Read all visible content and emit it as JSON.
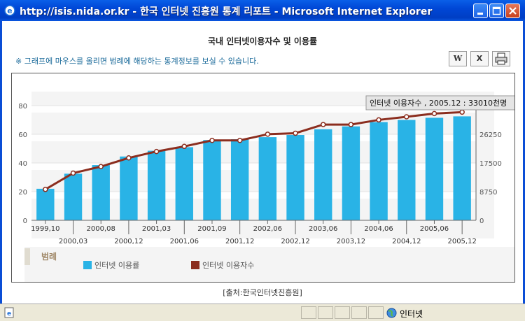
{
  "window": {
    "title": "http://isis.nida.or.kr - 한국 인터넷 진흥원 통계 리포트 - Microsoft Internet Explorer"
  },
  "page": {
    "title": "국내 인터넷이용자수 및 이용률",
    "notice": "※ 그래프에 마우스를 올리면 범례에 해당하는 통계정보를 보실 수 있습니다.",
    "source": "[출처:한국인터넷진흥원]"
  },
  "toolbar": {
    "word_label": "W",
    "excel_label": "X",
    "print_icon": "printer-icon"
  },
  "statusbar": {
    "zone": "인터넷",
    "page_icon": "ie-page-icon",
    "zone_icon": "globe-icon"
  },
  "chart_data": {
    "type": "bar",
    "categories": [
      "1999,10",
      "2000,03",
      "2000,08",
      "2000,12",
      "2001,03",
      "2001,06",
      "2001,09",
      "2001,12",
      "2002,06",
      "2002,12",
      "2003,06",
      "2003,12",
      "2004,06",
      "2004,12",
      "2005,06",
      "2005,12"
    ],
    "series": [
      {
        "name": "인터넷 이용률",
        "type": "bar",
        "axis": "left",
        "color": "#29b3e6",
        "values": [
          22,
          32.5,
          38.5,
          44.5,
          48.5,
          51,
          56,
          56.5,
          58,
          59.5,
          63.5,
          65.5,
          68.5,
          70,
          71.5,
          72.5
        ]
      },
      {
        "name": "인터넷 이용자수",
        "type": "line",
        "axis": "right",
        "color": "#8b2d1e",
        "values": [
          9430,
          14400,
          16400,
          19040,
          21000,
          22560,
          24380,
          24380,
          26270,
          26580,
          29220,
          29220,
          30640,
          31580,
          32570,
          33010
        ]
      }
    ],
    "y_left": {
      "min": 0,
      "max": 80,
      "ticks": [
        0,
        20,
        40,
        60,
        80
      ]
    },
    "y_right": {
      "min": 0,
      "max": 35000,
      "ticks": [
        0,
        8750,
        17500,
        26250
      ]
    },
    "tooltip": "인터넷 이용자수 , 2005.12 : 33010천명",
    "legend_title": "범례",
    "legend": [
      "인터넷 이용률",
      "인터넷 이용자수"
    ],
    "grid": true,
    "legend_position": "bottom"
  }
}
